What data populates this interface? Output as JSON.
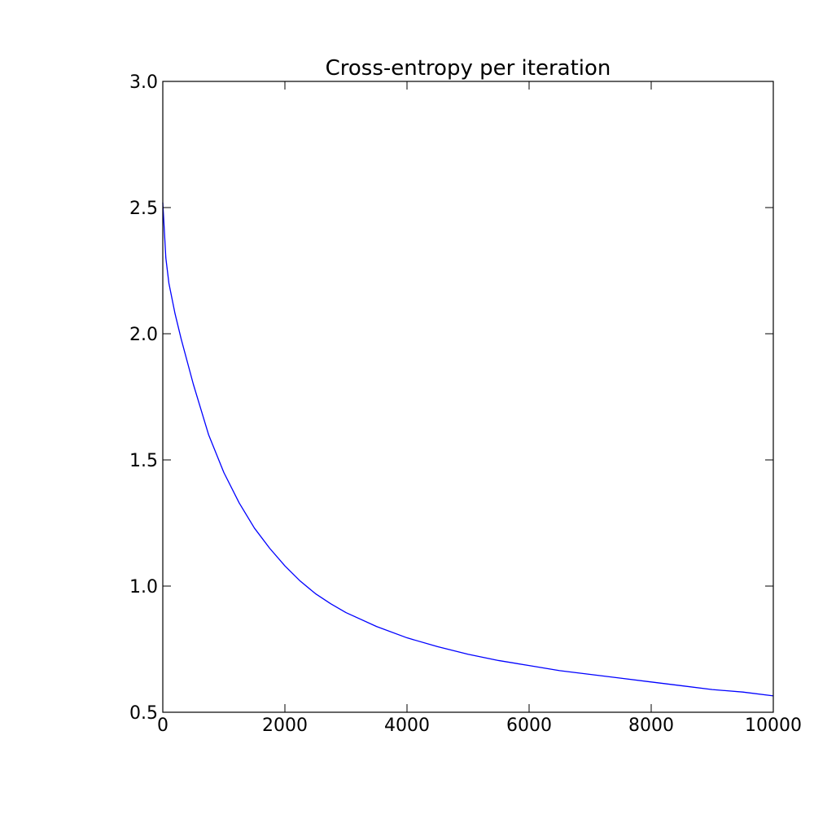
{
  "chart_data": {
    "type": "line",
    "title": "Cross-entropy per iteration",
    "xlabel": "",
    "ylabel": "",
    "xlim": [
      0,
      10000
    ],
    "ylim": [
      0.5,
      3.0
    ],
    "xticks": [
      0,
      2000,
      4000,
      6000,
      8000,
      10000
    ],
    "xtick_labels": [
      "0",
      "2000",
      "4000",
      "6000",
      "8000",
      "10000"
    ],
    "yticks": [
      0.5,
      1.0,
      1.5,
      2.0,
      2.5,
      3.0
    ],
    "ytick_labels": [
      "0.5",
      "1.0",
      "1.5",
      "2.0",
      "2.5",
      "3.0"
    ],
    "grid": false,
    "line_color": "#0000ff",
    "series": [
      {
        "x": [
          0,
          50,
          100,
          200,
          300,
          500,
          750,
          1000,
          1250,
          1500,
          1750,
          2000,
          2250,
          2500,
          2750,
          3000,
          3500,
          4000,
          4500,
          5000,
          5500,
          6000,
          6500,
          7000,
          7500,
          8000,
          8500,
          9000,
          9500,
          10000
        ],
        "y": [
          2.52,
          2.3,
          2.2,
          2.08,
          1.98,
          1.8,
          1.6,
          1.45,
          1.33,
          1.23,
          1.15,
          1.08,
          1.02,
          0.97,
          0.93,
          0.895,
          0.84,
          0.795,
          0.76,
          0.73,
          0.705,
          0.685,
          0.665,
          0.65,
          0.635,
          0.62,
          0.605,
          0.59,
          0.58,
          0.565
        ]
      }
    ]
  }
}
